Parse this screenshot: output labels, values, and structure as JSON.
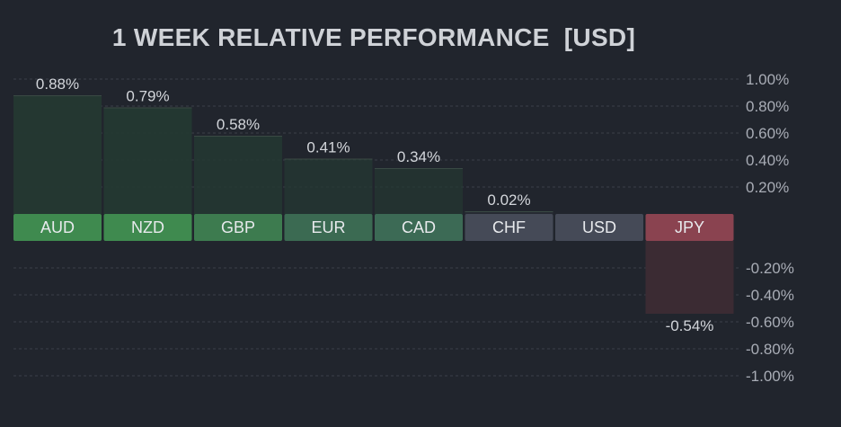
{
  "chart_data": {
    "type": "bar",
    "title": "1 WEEK RELATIVE PERFORMANCE  [USD]",
    "categories": [
      "AUD",
      "NZD",
      "GBP",
      "EUR",
      "CAD",
      "CHF",
      "USD",
      "JPY"
    ],
    "values": [
      0.88,
      0.79,
      0.58,
      0.41,
      0.34,
      0.02,
      0.0,
      -0.54
    ],
    "value_labels": [
      "0.88%",
      "0.79%",
      "0.58%",
      "0.41%",
      "0.34%",
      "0.02%",
      "",
      "-0.54%"
    ],
    "ylim": [
      -1.0,
      1.0
    ],
    "y_ticks": [
      1.0,
      0.8,
      0.6,
      0.4,
      0.2,
      -0.2,
      -0.4,
      -0.6,
      -0.8,
      -1.0
    ],
    "y_tick_labels": [
      "1.00%",
      "0.80%",
      "0.60%",
      "0.40%",
      "0.20%",
      "-0.20%",
      "-0.40%",
      "-0.60%",
      "-0.80%",
      "-1.00%"
    ],
    "grid": true,
    "legend": "none",
    "colors": {
      "background": "#21252d",
      "gridline": "#3a3f49",
      "positive_label": [
        "#3f8a4f",
        "#3f8a4f",
        "#3d7b4f",
        "#3b6a52",
        "#3c6a55"
      ],
      "neutral_label": "#454a57",
      "negative_label": "#8a4350",
      "positive_bar": "#243832",
      "neutral_bar": "#2a2e37",
      "negative_bar": "#3b2b33"
    }
  }
}
